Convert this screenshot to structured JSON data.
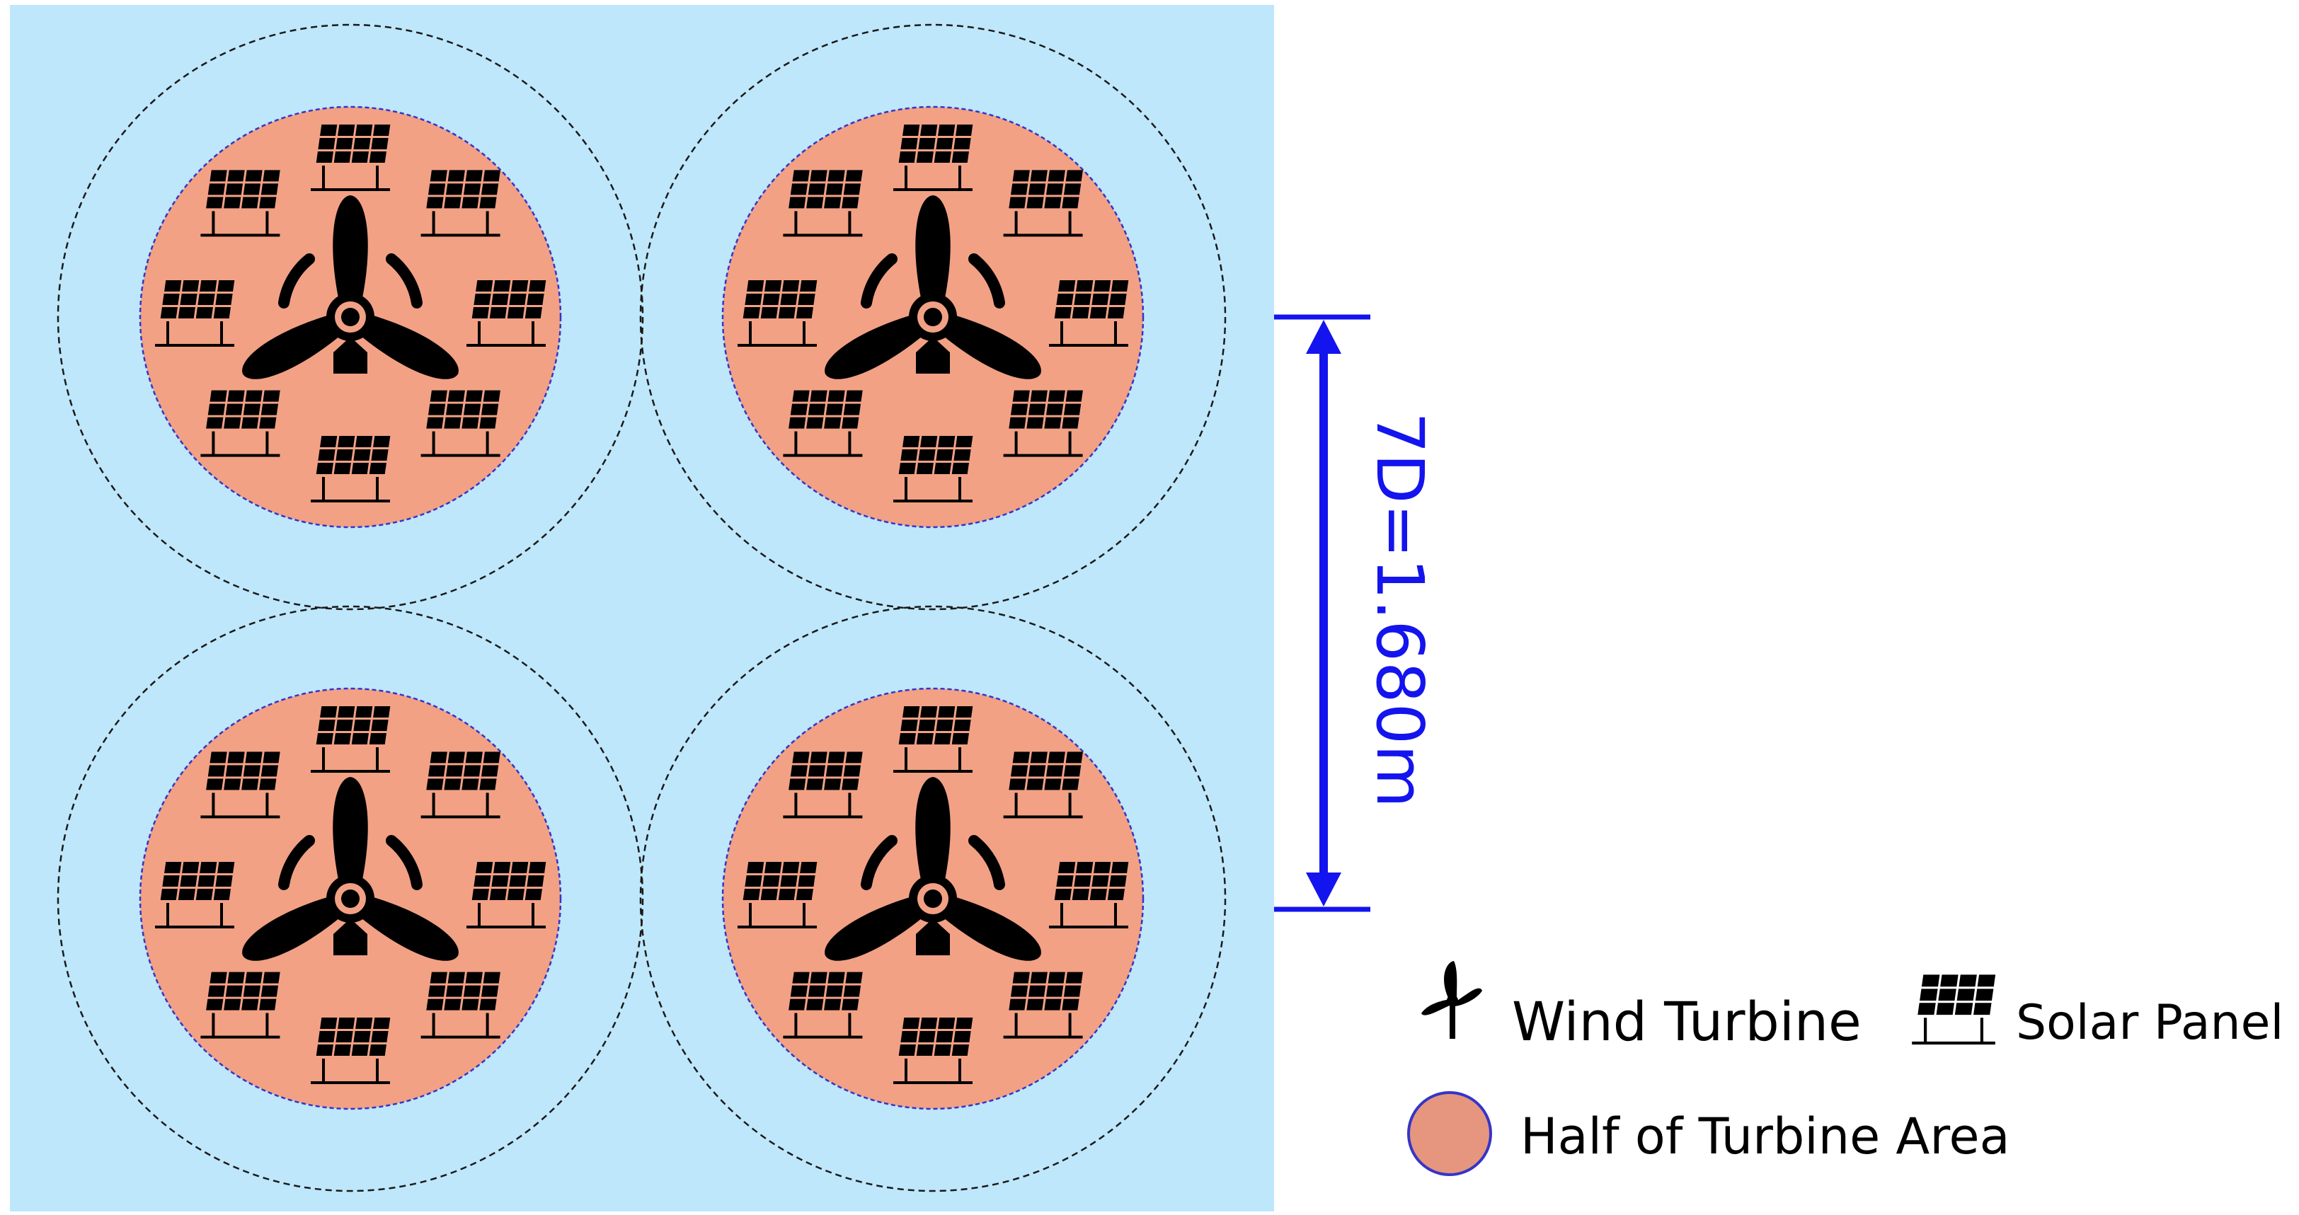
{
  "diagram": {
    "dimension_label": "7D=1.680m",
    "turbine_cells": [
      {
        "id": "top-left",
        "solar_panel_count": 8
      },
      {
        "id": "top-right",
        "solar_panel_count": 8
      },
      {
        "id": "bottom-left",
        "solar_panel_count": 8
      },
      {
        "id": "bottom-right",
        "solar_panel_count": 8
      }
    ]
  },
  "legend": {
    "wind_turbine": {
      "label": "Wind Turbine",
      "icon": "wind-turbine-icon"
    },
    "solar_panel": {
      "label": "Solar Panel",
      "icon": "solar-panel-icon"
    },
    "half_area": {
      "label": "Half of Turbine Area",
      "icon": "circle-swatch"
    }
  },
  "colors": {
    "field_background": "#bee7fb",
    "half_area_fill": "#f2a185",
    "half_area_stroke": "#3535c8",
    "outer_circle_stroke": "#1a1a1a",
    "dimension_color": "#1414ee",
    "legend_swatch_fill": "#e6967f",
    "icon_color": "#000000"
  }
}
